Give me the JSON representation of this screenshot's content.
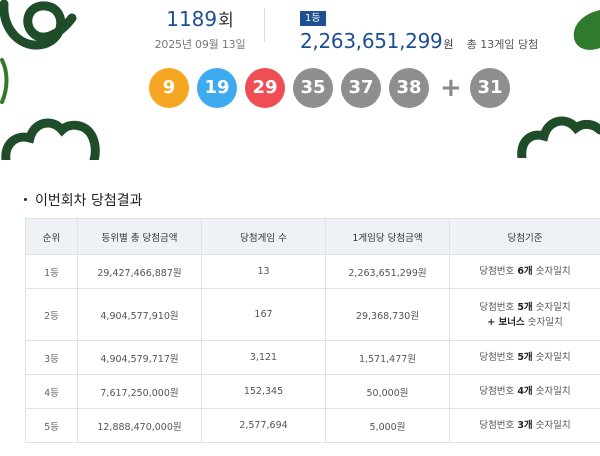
{
  "draw": {
    "round_number": "1189",
    "round_unit": "회",
    "date": "2025년 09월 13일"
  },
  "prize": {
    "badge": "1등",
    "amount": "2,263,651,299",
    "unit": "원",
    "winners_note": "총 13게임 당첨"
  },
  "numbers": {
    "balls": [
      {
        "value": "9",
        "color": "#f5a623"
      },
      {
        "value": "19",
        "color": "#3eaaf0"
      },
      {
        "value": "29",
        "color": "#ef4e55"
      },
      {
        "value": "35",
        "color": "#8e8e8e"
      },
      {
        "value": "37",
        "color": "#8e8e8e"
      },
      {
        "value": "38",
        "color": "#8e8e8e"
      }
    ],
    "plus": "+",
    "bonus": {
      "value": "31",
      "color": "#8e8e8e"
    }
  },
  "section": {
    "title": "이번회차 당첨결과"
  },
  "table": {
    "headers": [
      "순위",
      "등위별 총 당첨금액",
      "당첨게임 수",
      "1게임당 당첨금액",
      "당첨기준"
    ],
    "rows": [
      {
        "rank": "1등",
        "total": "29,427,466,887원",
        "games": "13",
        "per_game": "2,263,651,299원",
        "crit_pre": "당첨번호 ",
        "crit_hl": "6개",
        "crit_post": " 숫자일치",
        "crit2_hl": "",
        "crit2_post": ""
      },
      {
        "rank": "2등",
        "total": "4,904,577,910원",
        "games": "167",
        "per_game": "29,368,730원",
        "crit_pre": "당첨번호 ",
        "crit_hl": "5개",
        "crit_post": " 숫자일치",
        "crit2_hl": "+ 보너스",
        "crit2_post": " 숫자일치"
      },
      {
        "rank": "3등",
        "total": "4,904,579,717원",
        "games": "3,121",
        "per_game": "1,571,477원",
        "crit_pre": "당첨번호 ",
        "crit_hl": "5개",
        "crit_post": " 숫자일치",
        "crit2_hl": "",
        "crit2_post": ""
      },
      {
        "rank": "4등",
        "total": "7,617,250,000원",
        "games": "152,345",
        "per_game": "50,000원",
        "crit_pre": "당첨번호 ",
        "crit_hl": "4개",
        "crit_post": " 숫자일치",
        "crit2_hl": "",
        "crit2_post": ""
      },
      {
        "rank": "5등",
        "total": "12,888,470,000원",
        "games": "2,577,694",
        "per_game": "5,000원",
        "crit_pre": "당첨번호 ",
        "crit_hl": "3개",
        "crit_post": " 숫자일치",
        "crit2_hl": "",
        "crit2_post": ""
      }
    ]
  },
  "colors": {
    "decor_green": "#1f5a2a",
    "accent_blue": "#1d4f91"
  }
}
